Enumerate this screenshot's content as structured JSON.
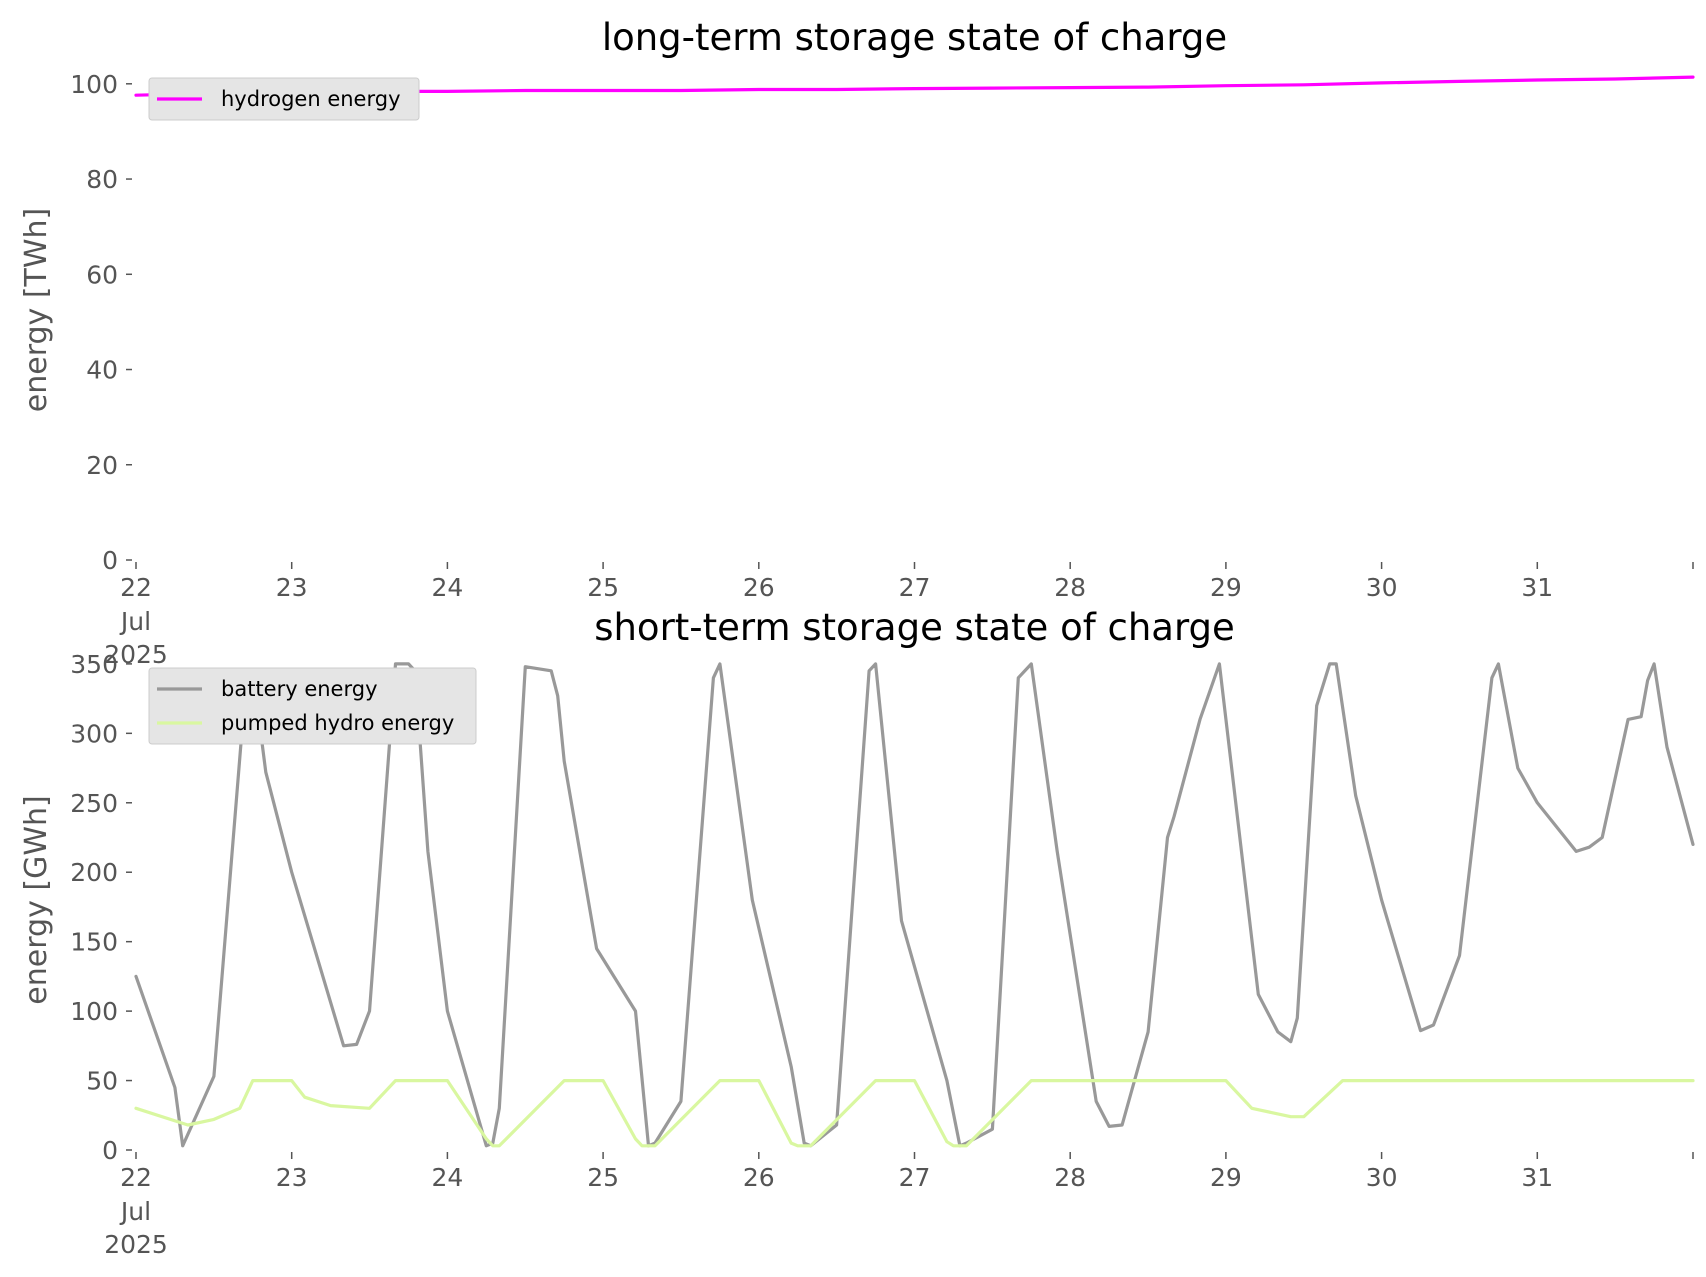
{
  "chart_data": [
    {
      "type": "line",
      "title": "long-term storage state of charge",
      "ylabel": "energy [TWh]",
      "xlabel": "",
      "x_axis": {
        "kind": "date",
        "start": "2025-07-22",
        "end": "2025-08-01",
        "tick_labels": [
          "22",
          "23",
          "24",
          "25",
          "26",
          "27",
          "28",
          "29",
          "30",
          "31"
        ],
        "first_tick_sublabels": [
          "Jul",
          "2025"
        ]
      },
      "ylim": [
        0,
        105
      ],
      "yticks": [
        0,
        20,
        40,
        60,
        80,
        100
      ],
      "legend_position": "top-left",
      "grid": false,
      "series": [
        {
          "name": "hydrogen energy",
          "color": "#ff00ff",
          "x": [
            "2025-07-22 00:00",
            "2025-07-22 12:00",
            "2025-07-23 00:00",
            "2025-07-23 12:00",
            "2025-07-24 00:00",
            "2025-07-24 12:00",
            "2025-07-25 00:00",
            "2025-07-25 12:00",
            "2025-07-26 00:00",
            "2025-07-26 12:00",
            "2025-07-27 00:00",
            "2025-07-27 12:00",
            "2025-07-28 00:00",
            "2025-07-28 12:00",
            "2025-07-29 00:00",
            "2025-07-29 12:00",
            "2025-07-30 00:00",
            "2025-07-30 12:00",
            "2025-07-31 00:00",
            "2025-07-31 12:00",
            "2025-08-01 00:00"
          ],
          "values": [
            97.6,
            98.0,
            98.3,
            98.4,
            98.4,
            98.6,
            98.6,
            98.6,
            98.8,
            98.8,
            99.0,
            99.1,
            99.2,
            99.3,
            99.6,
            99.8,
            100.2,
            100.5,
            100.8,
            101.0,
            101.4
          ]
        }
      ]
    },
    {
      "type": "line",
      "title": "short-term storage state of charge",
      "ylabel": "energy [GWh]",
      "xlabel": "",
      "x_axis": {
        "kind": "date",
        "start": "2025-07-22",
        "end": "2025-08-01",
        "tick_labels": [
          "22",
          "23",
          "24",
          "25",
          "26",
          "27",
          "28",
          "29",
          "30",
          "31"
        ],
        "first_tick_sublabels": [
          "Jul",
          "2025"
        ]
      },
      "ylim": [
        0,
        360
      ],
      "yticks": [
        0,
        50,
        100,
        150,
        200,
        250,
        300,
        350
      ],
      "legend_position": "top-left",
      "grid": false,
      "series": [
        {
          "name": "battery energy",
          "color": "#999999",
          "x": [
            "2025-07-22 00:00",
            "2025-07-22 06:00",
            "2025-07-22 07:12",
            "2025-07-22 12:00",
            "2025-07-22 17:00",
            "2025-07-22 18:00",
            "2025-07-22 20:00",
            "2025-07-23 00:00",
            "2025-07-23 08:00",
            "2025-07-23 10:00",
            "2025-07-23 12:00",
            "2025-07-23 16:00",
            "2025-07-23 18:00",
            "2025-07-23 19:00",
            "2025-07-23 21:00",
            "2025-07-24 00:00",
            "2025-07-24 06:00",
            "2025-07-24 07:00",
            "2025-07-24 08:00",
            "2025-07-24 12:00",
            "2025-07-24 16:00",
            "2025-07-24 17:00",
            "2025-07-24 18:00",
            "2025-07-24 23:00",
            "2025-07-25 05:00",
            "2025-07-25 07:00",
            "2025-07-25 08:00",
            "2025-07-25 12:00",
            "2025-07-25 17:00",
            "2025-07-25 18:00",
            "2025-07-25 23:00",
            "2025-07-26 05:00",
            "2025-07-26 07:00",
            "2025-07-26 08:00",
            "2025-07-26 12:00",
            "2025-07-26 17:00",
            "2025-07-26 18:00",
            "2025-07-26 22:00",
            "2025-07-27 05:00",
            "2025-07-27 07:00",
            "2025-07-27 08:00",
            "2025-07-27 12:00",
            "2025-07-27 16:00",
            "2025-07-27 18:00",
            "2025-07-27 22:00",
            "2025-07-28 04:00",
            "2025-07-28 06:00",
            "2025-07-28 08:00",
            "2025-07-28 12:00",
            "2025-07-28 15:00",
            "2025-07-28 16:00",
            "2025-07-28 20:00",
            "2025-07-28 23:00",
            "2025-07-29 05:00",
            "2025-07-29 08:00",
            "2025-07-29 10:00",
            "2025-07-29 11:00",
            "2025-07-29 14:00",
            "2025-07-29 16:00",
            "2025-07-29 17:00",
            "2025-07-29 20:00",
            "2025-07-30 00:00",
            "2025-07-30 06:00",
            "2025-07-30 08:00",
            "2025-07-30 12:00",
            "2025-07-30 17:00",
            "2025-07-30 18:00",
            "2025-07-30 21:00",
            "2025-07-31 00:00",
            "2025-07-31 06:00",
            "2025-07-31 08:00",
            "2025-07-31 10:00",
            "2025-07-31 14:00",
            "2025-07-31 16:00",
            "2025-07-31 17:00",
            "2025-07-31 18:00",
            "2025-07-31 20:00",
            "2025-08-01 00:00"
          ],
          "values": [
            125,
            45,
            3,
            53,
            340,
            345,
            272,
            200,
            75,
            76,
            100,
            350,
            350,
            345,
            215,
            100,
            3,
            5,
            30,
            348,
            345,
            327,
            280,
            145,
            100,
            3,
            5,
            35,
            340,
            350,
            180,
            60,
            5,
            3,
            18,
            345,
            350,
            165,
            50,
            3,
            5,
            15,
            340,
            350,
            215,
            35,
            17,
            18,
            85,
            225,
            240,
            310,
            350,
            112,
            85,
            78,
            95,
            320,
            350,
            350,
            255,
            180,
            86,
            90,
            140,
            340,
            350,
            275,
            250,
            215,
            218,
            225,
            310,
            312,
            338,
            350,
            290,
            220
          ]
        },
        {
          "name": "pumped hydro energy",
          "color": "#d9f7a0",
          "x": [
            "2025-07-22 00:00",
            "2025-07-22 08:00",
            "2025-07-22 12:00",
            "2025-07-22 16:00",
            "2025-07-22 18:00",
            "2025-07-23 00:00",
            "2025-07-23 02:00",
            "2025-07-23 06:00",
            "2025-07-23 12:00",
            "2025-07-23 16:00",
            "2025-07-23 18:00",
            "2025-07-24 00:00",
            "2025-07-24 06:00",
            "2025-07-24 07:00",
            "2025-07-24 08:00",
            "2025-07-24 18:00",
            "2025-07-25 00:00",
            "2025-07-25 05:00",
            "2025-07-25 06:00",
            "2025-07-25 08:00",
            "2025-07-25 18:00",
            "2025-07-26 00:00",
            "2025-07-26 05:00",
            "2025-07-26 06:00",
            "2025-07-26 08:00",
            "2025-07-26 18:00",
            "2025-07-27 00:00",
            "2025-07-27 05:00",
            "2025-07-27 06:00",
            "2025-07-27 08:00",
            "2025-07-27 18:00",
            "2025-07-29 00:00",
            "2025-07-29 04:00",
            "2025-07-29 10:00",
            "2025-07-29 12:00",
            "2025-07-29 18:00",
            "2025-08-01 00:00"
          ],
          "values": [
            30,
            18,
            22,
            30,
            50,
            50,
            38,
            32,
            30,
            50,
            50,
            50,
            8,
            3,
            3,
            50,
            50,
            8,
            3,
            3,
            50,
            50,
            5,
            3,
            3,
            50,
            50,
            6,
            3,
            3,
            50,
            50,
            30,
            24,
            24,
            50,
            50
          ]
        }
      ]
    }
  ]
}
